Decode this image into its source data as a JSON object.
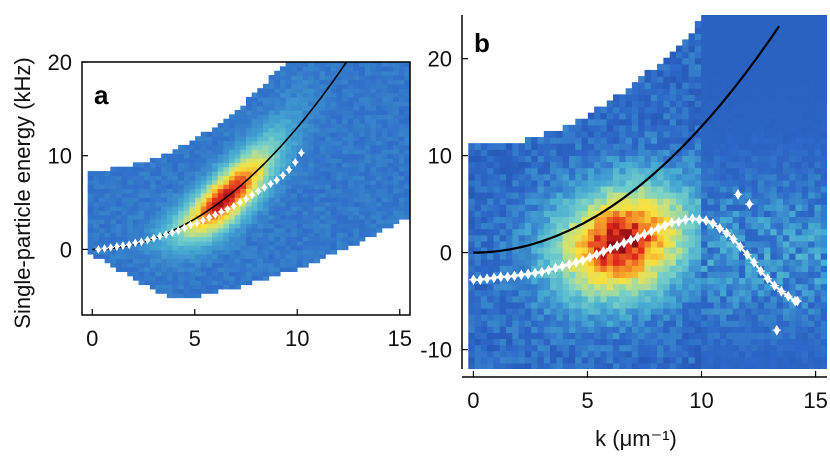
{
  "figure": {
    "ylabel": "Single-particle energy (kHz)",
    "xlabel": "k (μm⁻¹)"
  },
  "chart_data": [
    {
      "type": "heatmap",
      "panel": "a",
      "xlim": [
        -0.5,
        15.5
      ],
      "ylim": [
        -7,
        20
      ],
      "xticks": [
        "0",
        "5",
        "10",
        "15"
      ],
      "yticks": [
        "0",
        "10",
        "20"
      ],
      "band": {
        "top_at_k0": 8.5,
        "bottom_at_k0": -0.5,
        "lower_offset": 5.5,
        "curvature": 0.13,
        "peak_k": 6.5
      },
      "dispersion_line": {
        "style": "black solid",
        "function": "0.13*k^2",
        "k": [
          0,
          2,
          4,
          6,
          8,
          10,
          12,
          12.4
        ]
      },
      "data_points": {
        "k": [
          0.3,
          0.6,
          0.9,
          1.2,
          1.5,
          1.8,
          2.1,
          2.4,
          2.7,
          3.0,
          3.3,
          3.6,
          3.9,
          4.2,
          4.5,
          4.8,
          5.1,
          5.4,
          5.7,
          6.0,
          6.3,
          6.6,
          6.9,
          7.2,
          7.5,
          7.8,
          8.1,
          8.4,
          8.7,
          9.0,
          9.3,
          9.6,
          9.9,
          10.2
        ],
        "energy": [
          0.0,
          0.1,
          0.2,
          0.3,
          0.4,
          0.5,
          0.7,
          0.8,
          1.0,
          1.2,
          1.4,
          1.6,
          1.8,
          2.0,
          2.3,
          2.6,
          2.8,
          3.1,
          3.4,
          3.7,
          4.0,
          4.3,
          4.6,
          5.0,
          5.4,
          5.8,
          6.2,
          6.6,
          7.0,
          7.4,
          7.9,
          8.5,
          9.3,
          10.3
        ]
      }
    },
    {
      "type": "heatmap",
      "panel": "b",
      "xlim": [
        -0.5,
        15.5
      ],
      "ylim": [
        -12,
        24.5
      ],
      "xticks": [
        "0",
        "5",
        "10",
        "15"
      ],
      "yticks": [
        "-10",
        "0",
        "10",
        "20"
      ],
      "band": {
        "top_at_k0": 11,
        "bottom_at_k0": -12,
        "curvature": 0.1,
        "peak_k": 6.5,
        "peak_energy": -1.5
      },
      "dispersion_line": {
        "style": "black solid",
        "function": "0.13*k^2",
        "k": [
          0,
          2,
          4,
          6,
          8,
          10,
          12,
          13.4
        ]
      },
      "data_points": {
        "k": [
          0.0,
          0.3,
          0.6,
          0.9,
          1.2,
          1.5,
          1.8,
          2.1,
          2.4,
          2.7,
          3.0,
          3.3,
          3.6,
          3.9,
          4.2,
          4.5,
          4.8,
          5.1,
          5.4,
          5.7,
          6.0,
          6.3,
          6.6,
          6.9,
          7.2,
          7.5,
          7.8,
          8.1,
          8.4,
          8.7,
          9.0,
          9.3,
          9.6,
          9.9,
          10.2,
          10.5,
          10.8,
          11.1,
          11.4,
          11.7,
          12.0,
          12.3,
          12.6,
          12.9,
          13.2,
          13.5,
          13.8,
          14.1,
          14.2,
          11.6,
          13.3,
          12.1
        ],
        "energy": [
          -2.8,
          -2.8,
          -2.7,
          -2.6,
          -2.5,
          -2.5,
          -2.4,
          -2.3,
          -2.2,
          -2.1,
          -2.0,
          -1.8,
          -1.6,
          -1.4,
          -1.2,
          -1.0,
          -0.8,
          -0.5,
          -0.2,
          0.1,
          0.4,
          0.7,
          1.0,
          1.3,
          1.6,
          1.9,
          2.2,
          2.5,
          2.8,
          3.1,
          3.2,
          3.4,
          3.5,
          3.4,
          3.3,
          3.0,
          2.5,
          2.0,
          1.4,
          0.6,
          -0.2,
          -1.0,
          -1.9,
          -2.7,
          -3.4,
          -4.0,
          -4.5,
          -5.0,
          -5.0,
          6.0,
          -8.0,
          5.0
        ]
      }
    }
  ]
}
